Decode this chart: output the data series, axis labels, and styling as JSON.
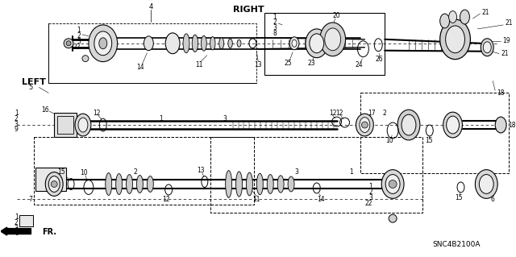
{
  "background_color": "#ffffff",
  "fig_width": 6.4,
  "fig_height": 3.19,
  "dpi": 100,
  "right_label": "RIGHT",
  "left_label": "LEFT",
  "fr_label": "FR.",
  "snc_label": "SNC4B2100A"
}
